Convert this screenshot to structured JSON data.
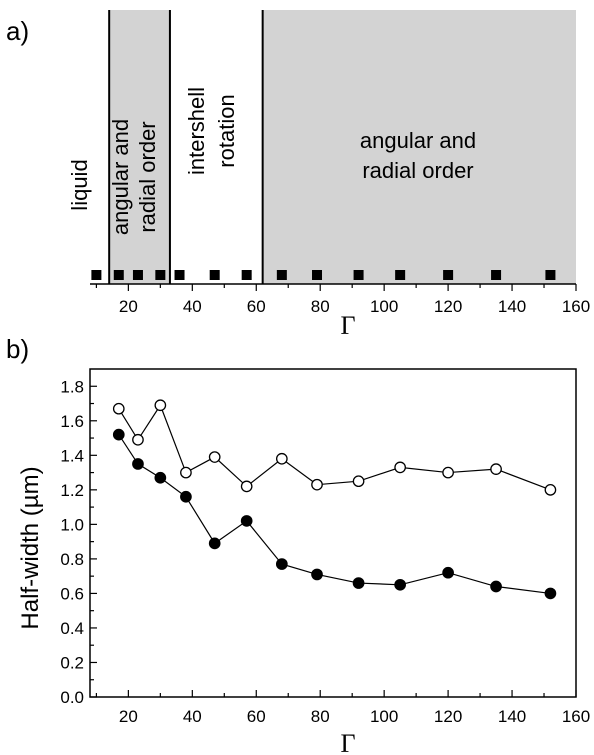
{
  "panel_a": {
    "letter": "a)",
    "region_labels": {
      "liquid": "liquid",
      "order_1": [
        "angular and",
        "radial order"
      ],
      "rotation": [
        "intershell",
        "rotation"
      ],
      "order_2": [
        "angular and",
        "radial order"
      ]
    }
  },
  "panel_b": {
    "letter": "b)"
  },
  "colors": {
    "shaded": "#d3d3d3",
    "axis": "#000000",
    "open_marker_fill": "#ffffff",
    "filled_marker": "#000000"
  },
  "chart_data": [
    {
      "type": "scatter",
      "xlabel": "Γ",
      "ylabel": "",
      "xlim": [
        8,
        160
      ],
      "xticks": [
        20,
        40,
        60,
        80,
        100,
        120,
        140,
        160
      ],
      "regions": [
        {
          "x_range": [
            8,
            14
          ],
          "shaded": false,
          "label": "liquid"
        },
        {
          "x_range": [
            14,
            33
          ],
          "shaded": true,
          "label": "angular and radial order"
        },
        {
          "x_range": [
            33,
            62
          ],
          "shaded": false,
          "label": "intershell rotation"
        },
        {
          "x_range": [
            62,
            160
          ],
          "shaded": true,
          "label": "angular and radial order"
        }
      ],
      "boundaries": [
        14,
        33,
        62
      ],
      "points_x": [
        10,
        17,
        23,
        30,
        36,
        47,
        57,
        68,
        79,
        92,
        105,
        120,
        135,
        152
      ],
      "marker": "square"
    },
    {
      "type": "line",
      "xlabel": "Γ",
      "ylabel": "Half-width (µm)",
      "xlim": [
        8,
        160
      ],
      "ylim": [
        0,
        1.9
      ],
      "xticks": [
        20,
        40,
        60,
        80,
        100,
        120,
        140,
        160
      ],
      "yticks": [
        0.0,
        0.2,
        0.4,
        0.6,
        0.8,
        1.0,
        1.2,
        1.4,
        1.6,
        1.8
      ],
      "series": [
        {
          "marker": "open-circle",
          "x": [
            17,
            23,
            30,
            38,
            47,
            57,
            68,
            79,
            92,
            105,
            120,
            135,
            152
          ],
          "values": [
            1.67,
            1.49,
            1.69,
            1.3,
            1.39,
            1.22,
            1.38,
            1.23,
            1.25,
            1.33,
            1.3,
            1.32,
            1.2
          ]
        },
        {
          "marker": "filled-circle",
          "x": [
            17,
            23,
            30,
            38,
            47,
            57,
            68,
            79,
            92,
            105,
            120,
            135,
            152
          ],
          "values": [
            1.52,
            1.35,
            1.27,
            1.16,
            0.89,
            1.02,
            0.77,
            0.71,
            0.66,
            0.65,
            0.72,
            0.64,
            0.6
          ]
        }
      ]
    }
  ]
}
